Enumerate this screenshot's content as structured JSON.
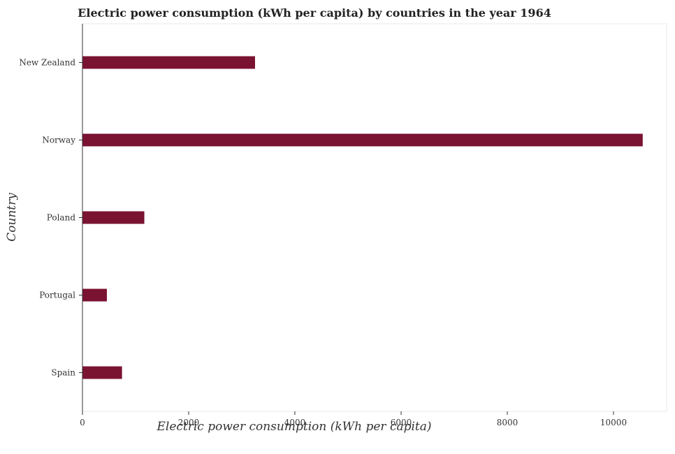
{
  "chart_data": {
    "type": "bar",
    "orientation": "horizontal",
    "title": "Electric power consumption (kWh per capita) by countries in the year 1964",
    "xlabel": "Electric power consumption (kWh per capita)",
    "ylabel": "Country",
    "categories": [
      "New Zealand",
      "Norway",
      "Poland",
      "Portugal",
      "Spain"
    ],
    "values": [
      3250,
      10550,
      1165,
      460,
      745
    ],
    "xlim": [
      0,
      11000
    ],
    "xticks": [
      0,
      2000,
      4000,
      6000,
      8000,
      10000
    ],
    "xtick_labels": [
      "0",
      "2000",
      "4000",
      "6000",
      "8000",
      "10000"
    ],
    "grid": false,
    "legend": "none",
    "bar_color": "#7a1232"
  }
}
